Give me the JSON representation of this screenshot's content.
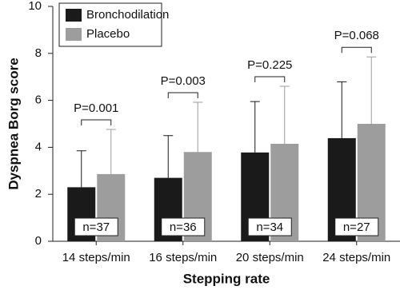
{
  "chart_data": {
    "type": "bar",
    "ylabel": "Dyspnea Borg score",
    "xlabel": "Stepping rate",
    "categories": [
      "14 steps/min",
      "16 steps/min",
      "20 steps/min",
      "24 steps/min"
    ],
    "series": [
      {
        "name": "Bronchodilation",
        "color": "#1a1a1a",
        "values": [
          2.3,
          2.7,
          3.78,
          4.39
        ],
        "errors": [
          1.55,
          1.8,
          2.17,
          2.4
        ]
      },
      {
        "name": "Placebo",
        "color": "#9d9d9d",
        "values": [
          2.86,
          3.8,
          4.15,
          5.0
        ],
        "errors": [
          1.9,
          2.12,
          2.45,
          2.85
        ]
      }
    ],
    "p_labels": [
      "P=0.001",
      "P=0.003",
      "P=0.225",
      "P=0.068"
    ],
    "n_labels": [
      "n=37",
      "n=36",
      "n=34",
      "n=27"
    ],
    "ylim": [
      0,
      10
    ],
    "yticks": [
      0,
      2,
      4,
      6,
      8,
      10
    ]
  }
}
